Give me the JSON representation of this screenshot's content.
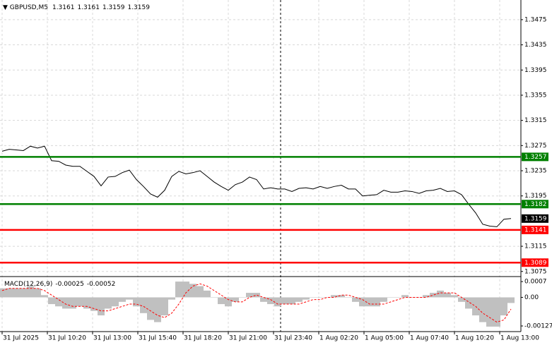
{
  "chart_data": [
    {
      "type": "line",
      "title": "GBPUSD,M5",
      "ohlc": [
        1.3161,
        1.3161,
        1.3159,
        1.3159
      ],
      "x_labels": [
        "31 Jul 2025",
        "31 Jul 10:20",
        "31 Jul 13:00",
        "31 Jul 15:40",
        "31 Jul 18:20",
        "31 Jul 21:00",
        "31 Jul 23:40",
        "1 Aug 02:20",
        "1 Aug 05:00",
        "1 Aug 07:40",
        "1 Aug 10:20",
        "1 Aug 13:00"
      ],
      "series": [
        {
          "color": "#000000",
          "values": [
            1.3266,
            1.3269,
            1.3268,
            1.3267,
            1.3274,
            1.3271,
            1.3274,
            1.3251,
            1.325,
            1.3244,
            1.3242,
            1.3242,
            1.3234,
            1.3226,
            1.3211,
            1.3225,
            1.3226,
            1.3232,
            1.3236,
            1.3221,
            1.321,
            1.3198,
            1.3193,
            1.3204,
            1.3226,
            1.3234,
            1.323,
            1.3232,
            1.3235,
            1.3226,
            1.3217,
            1.321,
            1.3204,
            1.3213,
            1.3217,
            1.3225,
            1.3221,
            1.3206,
            1.3208,
            1.3206,
            1.3206,
            1.3202,
            1.3207,
            1.3208,
            1.3206,
            1.321,
            1.3207,
            1.321,
            1.3212,
            1.3206,
            1.3206,
            1.3195,
            1.3196,
            1.3197,
            1.3204,
            1.3201,
            1.3201,
            1.3203,
            1.3202,
            1.3199,
            1.3203,
            1.3204,
            1.3207,
            1.3202,
            1.3203,
            1.3197,
            1.3182,
            1.3168,
            1.315,
            1.3147,
            1.3146,
            1.3158,
            1.3159
          ]
        }
      ],
      "ylim": [
        1.3068,
        1.3504
      ],
      "yticks": [
        1.3475,
        1.3435,
        1.3395,
        1.3355,
        1.3315,
        1.3275,
        1.3235,
        1.3195,
        1.3115,
        1.3075
      ],
      "grid": true,
      "levels": [
        {
          "value": 1.3257,
          "color": "#008000"
        },
        {
          "value": 1.3182,
          "color": "#008000"
        },
        {
          "value": 1.3141,
          "color": "#ff0000"
        },
        {
          "value": 1.3089,
          "color": "#ff0000"
        }
      ],
      "last_price": 1.3159
    },
    {
      "type": "macd",
      "title": "MACD(12,26,9)",
      "current": [
        -0.00025,
        -0.00052
      ],
      "histogram": {
        "color": "#c0c0c0",
        "values": [
          0.0004,
          0.0004,
          0.0004,
          0.0004,
          0.0005,
          0.0004,
          0.0001,
          -0.0003,
          -0.0004,
          -0.0005,
          -0.0005,
          -0.0004,
          -0.0005,
          -0.0006,
          -0.0008,
          -0.0005,
          -0.0004,
          -0.0002,
          -0.0001,
          -0.0004,
          -0.0007,
          -0.001,
          -0.0011,
          -0.0008,
          -0.0001,
          0.0007,
          0.0007,
          0.0006,
          0.0005,
          0.0003,
          0.0,
          -0.0003,
          -0.0004,
          -0.0002,
          0.0,
          0.0002,
          0.0002,
          -0.0002,
          -0.0003,
          -0.0004,
          -0.0003,
          -0.0003,
          -0.0002,
          -0.0001,
          0.0,
          0.0,
          0.0,
          0.0001,
          0.0001,
          0.0,
          -0.0002,
          -0.0004,
          -0.0004,
          -0.0004,
          -0.0002,
          0.0,
          0.0,
          0.0001,
          0.0,
          0.0,
          0.0001,
          0.0002,
          0.0003,
          0.0002,
          0.0001,
          -0.0002,
          -0.0005,
          -0.0008,
          -0.0011,
          -0.0013,
          -0.0013,
          -0.0008,
          -0.00025
        ]
      },
      "signal": {
        "color": "#ff0000",
        "values": [
          0.0003,
          0.0004,
          0.0004,
          0.0004,
          0.0004,
          0.0004,
          0.0003,
          0.0001,
          -0.0001,
          -0.0003,
          -0.0004,
          -0.0004,
          -0.0004,
          -0.0005,
          -0.0006,
          -0.0006,
          -0.0005,
          -0.0004,
          -0.0003,
          -0.0003,
          -0.0004,
          -0.0006,
          -0.0008,
          -0.0009,
          -0.0007,
          -0.0003,
          0.0002,
          0.0005,
          0.0006,
          0.0005,
          0.0003,
          0.0001,
          -0.0001,
          -0.0002,
          -0.0002,
          0.0,
          0.0001,
          0.0,
          -0.0001,
          -0.0003,
          -0.0003,
          -0.0003,
          -0.0003,
          -0.0002,
          -0.0001,
          -0.0001,
          0.0,
          0.0,
          0.0001,
          0.0001,
          0.0,
          -0.0001,
          -0.0003,
          -0.0003,
          -0.0003,
          -0.0002,
          -0.0001,
          0.0,
          0.0,
          0.0,
          0.0,
          0.0001,
          0.0002,
          0.0002,
          0.0002,
          0.0,
          -0.0002,
          -0.0004,
          -0.0007,
          -0.0009,
          -0.0011,
          -0.001,
          -0.00052
        ]
      },
      "ylim": [
        -0.00152,
        0.00086
      ],
      "yticks": [
        0.0007,
        {
          "value": 0,
          "label": "0.00"
        },
        -0.00127
      ]
    }
  ]
}
